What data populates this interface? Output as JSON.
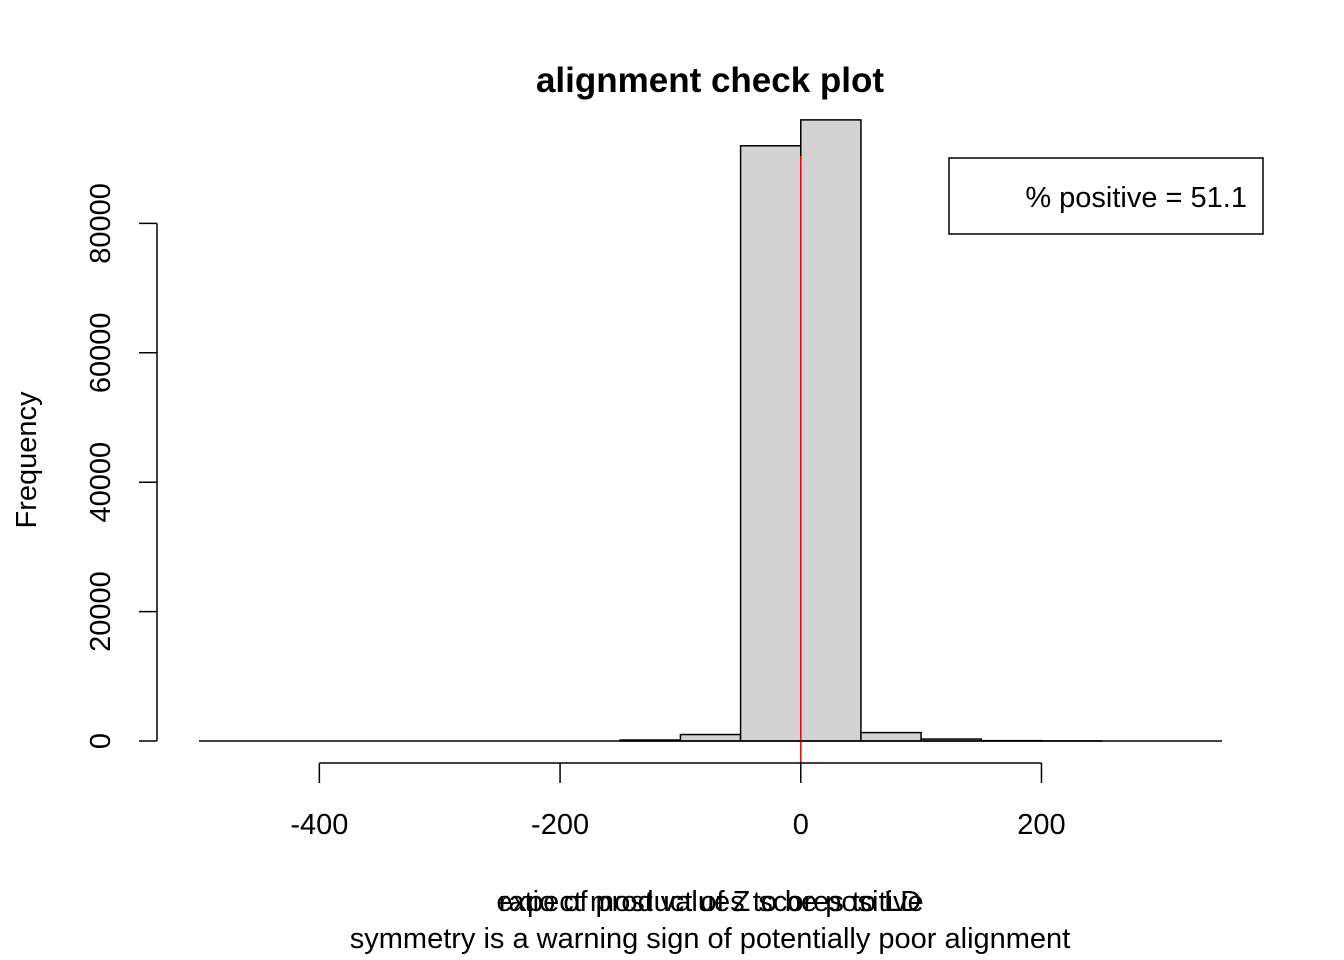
{
  "chart_data": {
    "type": "bar",
    "title": "alignment check plot",
    "xlabel_lines": [
      "ratio of product of Z scores to LD",
      "expect most values to be positive",
      "symmetry is a warning sign of potentially poor alignment"
    ],
    "ylabel": "Frequency",
    "bin_edges": [
      -500,
      -450,
      -400,
      -350,
      -300,
      -250,
      -200,
      -150,
      -100,
      -50,
      0,
      50,
      100,
      150,
      200,
      250,
      300,
      350
    ],
    "values": [
      0,
      0,
      0,
      0,
      0,
      0,
      0,
      150,
      1000,
      92000,
      96000,
      1300,
      300,
      50,
      10,
      0,
      0
    ],
    "xlim": [
      -500,
      350
    ],
    "ylim": [
      0,
      100000
    ],
    "x_ticks": [
      -400,
      -200,
      0,
      200
    ],
    "x_tick_labels": [
      "-400",
      "-200",
      "0",
      "200"
    ],
    "y_ticks": [
      0,
      20000,
      40000,
      60000,
      80000
    ],
    "y_tick_labels": [
      "0",
      "20000",
      "40000",
      "60000",
      "80000"
    ],
    "vline": {
      "x": 0,
      "color": "#ff0000"
    },
    "bar_fill": "#d3d3d3",
    "bar_stroke": "#000000",
    "legend": {
      "text": "% positive = 51.1",
      "placement": "top-right"
    },
    "grid": false
  }
}
